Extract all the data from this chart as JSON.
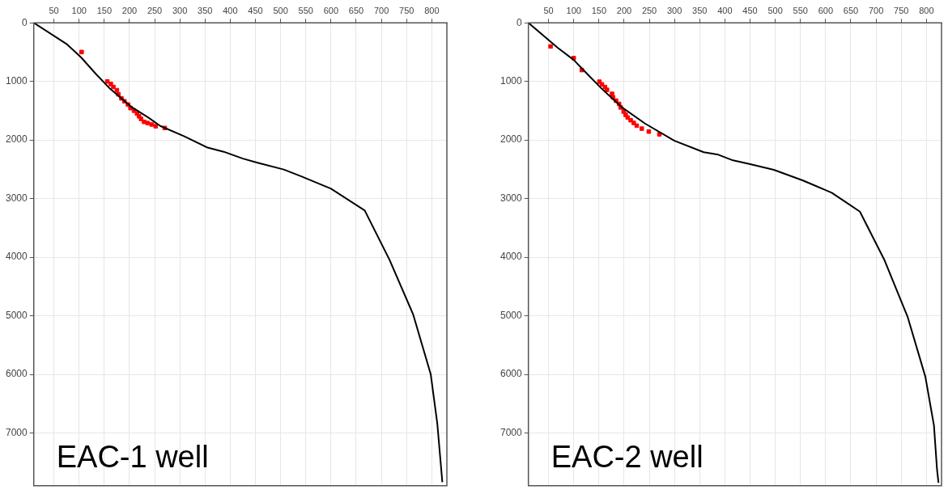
{
  "chart_data": [
    {
      "type": "line",
      "annotations": [
        "EAC-1 well"
      ],
      "xlim": [
        10,
        830
      ],
      "ylim": [
        7900,
        0
      ],
      "xticks": [
        50,
        100,
        150,
        200,
        250,
        300,
        350,
        400,
        450,
        500,
        550,
        600,
        650,
        700,
        750,
        800
      ],
      "yticks": [
        0,
        1000,
        2000,
        3000,
        4000,
        5000,
        6000,
        7000
      ],
      "grid": true,
      "legend": false,
      "series": [
        {
          "type": "line",
          "marker": "none",
          "color": "#000000",
          "x": [
            10,
            75,
            104,
            133,
            162,
            203,
            238,
            261,
            308,
            355,
            387,
            425,
            454,
            506,
            541,
            600,
            667,
            716,
            763,
            798,
            811,
            821
          ],
          "values": [
            0,
            360,
            590,
            870,
            1130,
            1430,
            1620,
            1760,
            1935,
            2130,
            2200,
            2317,
            2387,
            2503,
            2620,
            2830,
            3203,
            4042,
            4975,
            6000,
            6840,
            7840
          ]
        },
        {
          "type": "scatter",
          "marker": "square",
          "color": "#ff0000",
          "x": [
            105,
            156,
            163,
            168,
            175,
            178,
            184,
            190,
            197,
            202,
            209,
            215,
            219,
            223,
            229,
            236,
            244,
            252,
            270
          ],
          "values": [
            499,
            1000,
            1045,
            1095,
            1150,
            1220,
            1290,
            1340,
            1395,
            1455,
            1500,
            1550,
            1595,
            1640,
            1690,
            1710,
            1735,
            1765,
            1795
          ]
        }
      ]
    },
    {
      "type": "line",
      "annotations": [
        "EAC-2 well"
      ],
      "xlim": [
        10,
        830
      ],
      "ylim": [
        7900,
        0
      ],
      "xticks": [
        50,
        100,
        150,
        200,
        250,
        300,
        350,
        400,
        450,
        500,
        550,
        600,
        650,
        700,
        750,
        800
      ],
      "yticks": [
        0,
        1000,
        2000,
        3000,
        4000,
        5000,
        6000,
        7000
      ],
      "grid": true,
      "legend": false,
      "series": [
        {
          "type": "line",
          "marker": "none",
          "color": "#000000",
          "x": [
            10,
            68,
            100,
            126,
            155,
            196,
            242,
            300,
            358,
            387,
            416,
            450,
            497,
            555,
            612,
            668,
            717,
            763,
            798,
            815,
            821,
            824
          ],
          "values": [
            0,
            426,
            634,
            866,
            1120,
            1444,
            1722,
            2014,
            2208,
            2251,
            2347,
            2413,
            2509,
            2691,
            2899,
            3222,
            4054,
            5025,
            6042,
            6874,
            7614,
            7850
          ]
        },
        {
          "type": "scatter",
          "marker": "square",
          "color": "#ff0000",
          "x": [
            54,
            100,
            116,
            151,
            156,
            162,
            166,
            176,
            178,
            184,
            190,
            193,
            199,
            203,
            207,
            213,
            219,
            225,
            235,
            249,
            270
          ],
          "values": [
            403,
            602,
            806,
            1005,
            1051,
            1097,
            1144,
            1213,
            1273,
            1329,
            1384,
            1444,
            1514,
            1569,
            1616,
            1662,
            1708,
            1755,
            1806,
            1856,
            1903
          ]
        }
      ]
    }
  ]
}
